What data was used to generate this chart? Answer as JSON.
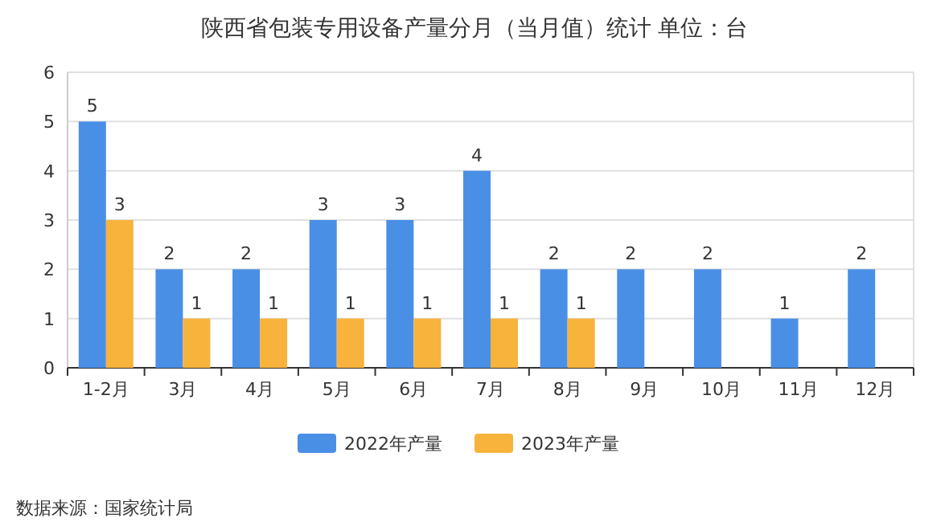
{
  "chart_data": {
    "type": "bar",
    "title": "陕西省包装专用设备产量分月（当月值）统计  单位：台",
    "categories": [
      "1-2月",
      "3月",
      "4月",
      "5月",
      "6月",
      "7月",
      "8月",
      "9月",
      "10月",
      "11月",
      "12月"
    ],
    "series": [
      {
        "name": "2022年产量",
        "color": "#4a8fe6",
        "values": [
          5,
          2,
          2,
          3,
          3,
          4,
          2,
          2,
          2,
          1,
          2
        ]
      },
      {
        "name": "2023年产量",
        "color": "#f8b33c",
        "values": [
          3,
          1,
          1,
          1,
          1,
          1,
          1,
          null,
          null,
          null,
          null
        ]
      }
    ],
    "ylim": [
      0,
      6
    ],
    "yticks": [
      0,
      1,
      2,
      3,
      4,
      5,
      6
    ],
    "grid": "y",
    "legend": "bottom",
    "data_labels": true,
    "annotations": [
      "数据来源：国家统计局"
    ]
  }
}
